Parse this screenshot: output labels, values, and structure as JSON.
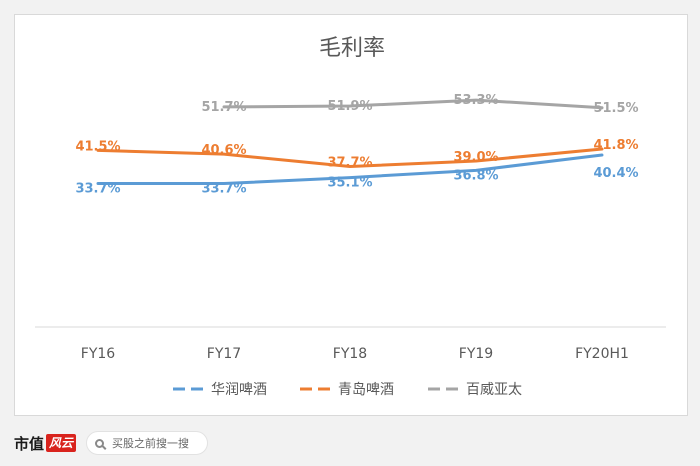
{
  "chart_data": {
    "type": "line",
    "title": "毛利率",
    "categories": [
      "FY16",
      "FY17",
      "FY18",
      "FY19",
      "FY20H1"
    ],
    "series": [
      {
        "name": "华润啤酒",
        "color": "#5b9bd5",
        "values": [
          33.7,
          33.7,
          35.1,
          36.8,
          40.4
        ],
        "labels": [
          "33.7%",
          "33.7%",
          "35.1%",
          "36.8%",
          "40.4%"
        ]
      },
      {
        "name": "青岛啤酒",
        "color": "#ed7d31",
        "values": [
          41.5,
          40.6,
          37.7,
          39.0,
          41.8
        ],
        "labels": [
          "41.5%",
          "40.6%",
          "37.7%",
          "39.0%",
          "41.8%"
        ]
      },
      {
        "name": "百威亚太",
        "color": "#a5a5a5",
        "values": [
          null,
          51.7,
          51.9,
          53.3,
          51.5
        ],
        "labels": [
          "",
          "51.7%",
          "51.9%",
          "53.3%",
          "51.5%"
        ]
      }
    ],
    "ylim": [
      0,
      70
    ],
    "grid": false,
    "legend_position": "bottom"
  },
  "footer": {
    "logo_text": "市值",
    "logo_badge": "风云",
    "search_placeholder": "买股之前搜一搜"
  }
}
